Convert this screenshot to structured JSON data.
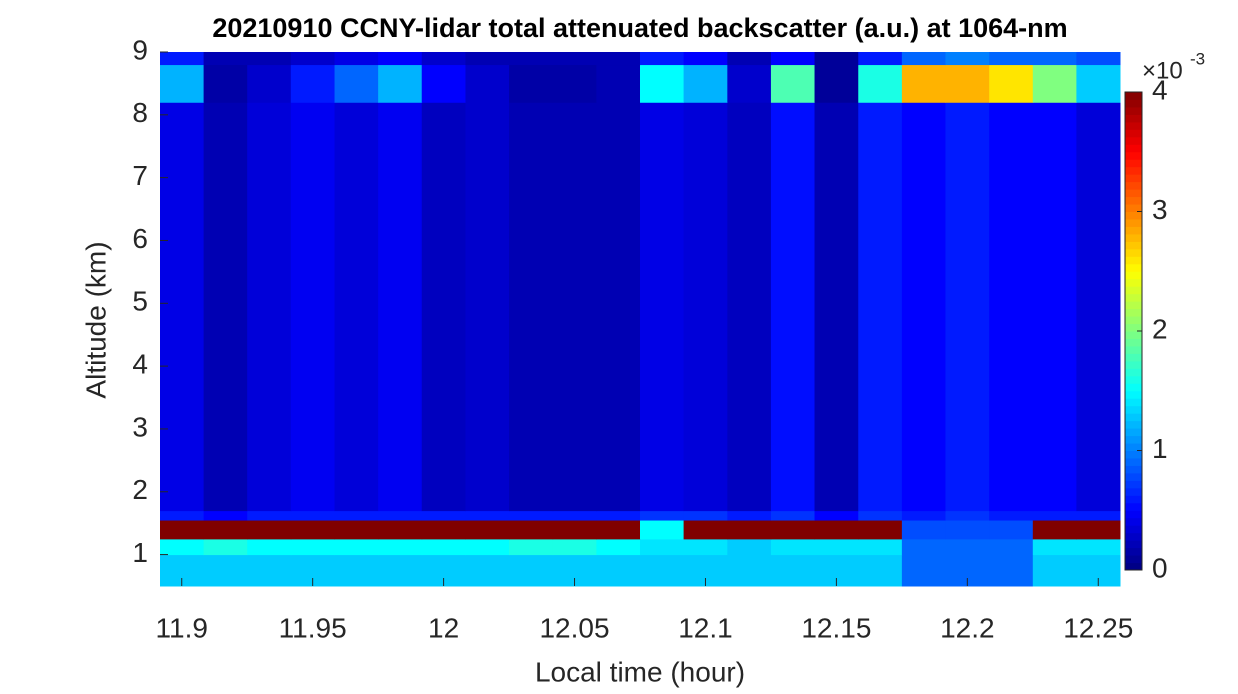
{
  "chart_data": {
    "type": "heatmap",
    "title": "20210910 CCNY-lidar total attenuated backscatter (a.u.) at 1064-nm",
    "xlabel": "Local time (hour)",
    "ylabel": "Altitude (km)",
    "x": [
      11.9,
      11.9167,
      11.9333,
      11.95,
      11.9667,
      11.9833,
      12,
      12.0167,
      12.0333,
      12.05,
      12.0667,
      12.0833,
      12.1,
      12.1167,
      12.1333,
      12.15,
      12.1667,
      12.1833,
      12.2,
      12.2167,
      12.2333,
      12.25
    ],
    "y_edges": [
      0.5,
      1,
      1.25,
      1.55,
      1.7,
      8.2,
      8.8,
      9
    ],
    "z": [
      [
        1.3,
        1.3,
        1.3,
        1.3,
        1.3,
        1.3,
        1.3,
        1.3,
        1.3,
        1.3,
        1.3,
        1.3,
        1.3,
        1.3,
        1.3,
        1.3,
        1.3,
        0.9,
        0.9,
        0.9,
        1.3,
        1.3
      ],
      [
        1.5,
        1.6,
        1.5,
        1.5,
        1.5,
        1.5,
        1.5,
        1.5,
        1.6,
        1.6,
        1.5,
        1.4,
        1.4,
        1.3,
        1.4,
        1.4,
        1.4,
        0.9,
        0.9,
        0.9,
        1.4,
        1.4
      ],
      [
        4,
        4,
        4,
        4,
        4,
        4,
        4,
        4,
        4,
        4,
        4,
        1.5,
        4,
        4,
        4,
        4,
        4,
        0.8,
        0.8,
        0.8,
        4,
        4
      ],
      [
        0.6,
        0.5,
        0.6,
        0.6,
        0.6,
        0.6,
        0.6,
        0.6,
        0.6,
        0.6,
        0.6,
        0.7,
        0.7,
        0.6,
        0.7,
        0.5,
        0.7,
        0.6,
        0.7,
        0.6,
        0.6,
        0.6
      ],
      [
        0.4,
        0.2,
        0.35,
        0.45,
        0.35,
        0.45,
        0.25,
        0.3,
        0.2,
        0.2,
        0.2,
        0.4,
        0.35,
        0.25,
        0.55,
        0.2,
        0.6,
        0.5,
        0.6,
        0.5,
        0.5,
        0.35
      ],
      [
        1.2,
        0.15,
        0.3,
        0.6,
        0.9,
        1.2,
        0.5,
        0.3,
        0.15,
        0.15,
        0.2,
        1.5,
        1.2,
        0.3,
        1.8,
        0.1,
        1.6,
        2.8,
        2.8,
        2.6,
        2.0,
        1.3
      ],
      [
        0.6,
        0.2,
        0.2,
        0.3,
        0.4,
        0.5,
        0.3,
        0.2,
        0.2,
        0.2,
        0.2,
        0.6,
        0.5,
        0.2,
        0.5,
        0.1,
        0.6,
        0.9,
        1.0,
        0.9,
        0.9,
        0.8
      ]
    ],
    "colormap": "jet",
    "clim": [
      0,
      4
    ],
    "cticks": [
      0,
      1,
      2,
      3,
      4
    ],
    "colorbar_label": {
      "base": "×10",
      "exponent": "-3"
    },
    "xlim": [
      11.8917,
      12.2583
    ],
    "xticks": [
      11.9,
      11.95,
      12,
      12.05,
      12.1,
      12.15,
      12.2,
      12.25
    ],
    "ylim": [
      0.5,
      9
    ],
    "yticks": [
      1,
      2,
      3,
      4,
      5,
      6,
      7,
      8,
      9
    ]
  }
}
